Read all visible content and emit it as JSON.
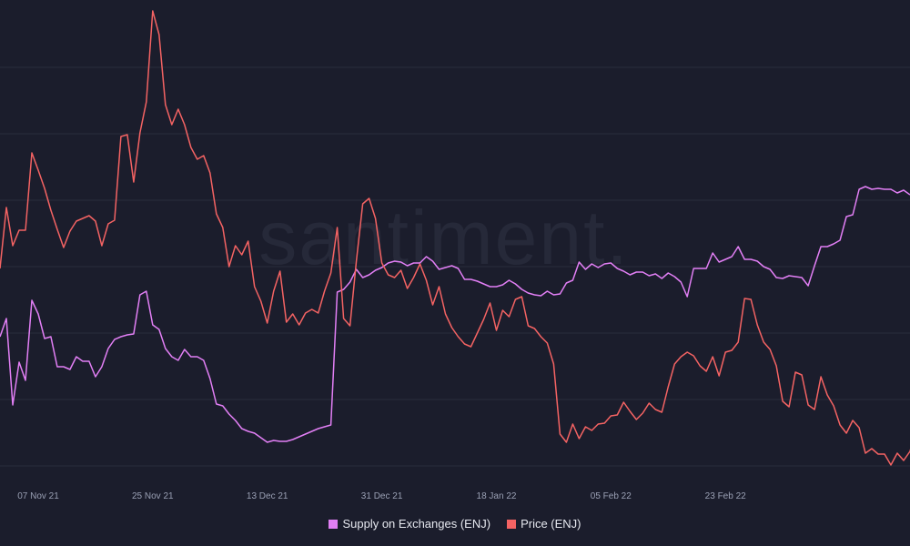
{
  "watermark": "santiment.",
  "chart_data": {
    "type": "line",
    "title": "",
    "xlabel": "",
    "ylabel": "",
    "x_ticks": [
      "07 Nov 21",
      "25 Nov 21",
      "13 Dec 21",
      "31 Dec 21",
      "18 Jan 22",
      "05 Feb 22",
      "23 Feb 22"
    ],
    "grid": "horizontal",
    "legend_position": "bottom-center",
    "x_start": "2021-11-01",
    "x_step_days": 1,
    "series": [
      {
        "name": "Supply on Exchanges (ENJ)",
        "color": "#e27ff5",
        "values": [
          370,
          350,
          445,
          398,
          418,
          330,
          345,
          372,
          370,
          403,
          403,
          406,
          392,
          397,
          397,
          414,
          403,
          383,
          373,
          370,
          368,
          367,
          324,
          320,
          357,
          362,
          383,
          392,
          396,
          384,
          392,
          392,
          396,
          416,
          444,
          446,
          455,
          462,
          471,
          474,
          476,
          481,
          486,
          484,
          485,
          485,
          483,
          480,
          477,
          474,
          471,
          469,
          467,
          321,
          318,
          310,
          296,
          305,
          302,
          297,
          294,
          289,
          287,
          288,
          292,
          289,
          289,
          282,
          287,
          296,
          294,
          292,
          295,
          307,
          307,
          309,
          312,
          315,
          315,
          313,
          308,
          312,
          318,
          322,
          324,
          325,
          320,
          324,
          323,
          311,
          308,
          288,
          296,
          290,
          294,
          290,
          289,
          295,
          298,
          302,
          299,
          299,
          303,
          301,
          306,
          300,
          304,
          310,
          326,
          295,
          295,
          295,
          278,
          288,
          285,
          282,
          271,
          285,
          285,
          287,
          293,
          296,
          305,
          306,
          303,
          304,
          305,
          314,
          292,
          271,
          271,
          268,
          264,
          238,
          236,
          208,
          205,
          208,
          207,
          208,
          208,
          212,
          209,
          214
        ]
      },
      {
        "name": "Price (ENJ)",
        "color": "#f46363",
        "values": [
          295,
          228,
          270,
          253,
          253,
          168,
          187,
          207,
          231,
          252,
          272,
          254,
          243,
          240,
          237,
          243,
          270,
          246,
          242,
          150,
          148,
          200,
          146,
          112,
          12,
          38,
          115,
          137,
          120,
          137,
          162,
          175,
          171,
          190,
          235,
          250,
          293,
          270,
          280,
          265,
          315,
          331,
          355,
          320,
          298,
          354,
          345,
          357,
          344,
          340,
          344,
          320,
          300,
          250,
          350,
          358,
          287,
          224,
          218,
          240,
          289,
          302,
          305,
          297,
          317,
          305,
          290,
          308,
          335,
          315,
          345,
          360,
          370,
          378,
          381,
          366,
          351,
          333,
          363,
          341,
          348,
          329,
          326,
          358,
          361,
          370,
          377,
          400,
          477,
          486,
          466,
          482,
          469,
          473,
          466,
          465,
          457,
          456,
          442,
          452,
          461,
          454,
          443,
          450,
          453,
          425,
          400,
          392,
          387,
          391,
          402,
          408,
          392,
          413,
          387,
          385,
          376,
          328,
          329,
          357,
          376,
          384,
          402,
          441,
          447,
          409,
          412,
          445,
          450,
          414,
          434,
          446,
          467,
          476,
          462,
          470,
          498,
          493,
          499,
          499,
          511,
          498,
          506,
          496,
          471,
          469,
          482,
          494,
          510,
          495,
          496,
          511
        ]
      }
    ]
  },
  "legend": {
    "items": [
      {
        "label": "Supply on Exchanges (ENJ)",
        "color": "#e27ff5"
      },
      {
        "label": "Price (ENJ)",
        "color": "#f46363"
      }
    ]
  }
}
